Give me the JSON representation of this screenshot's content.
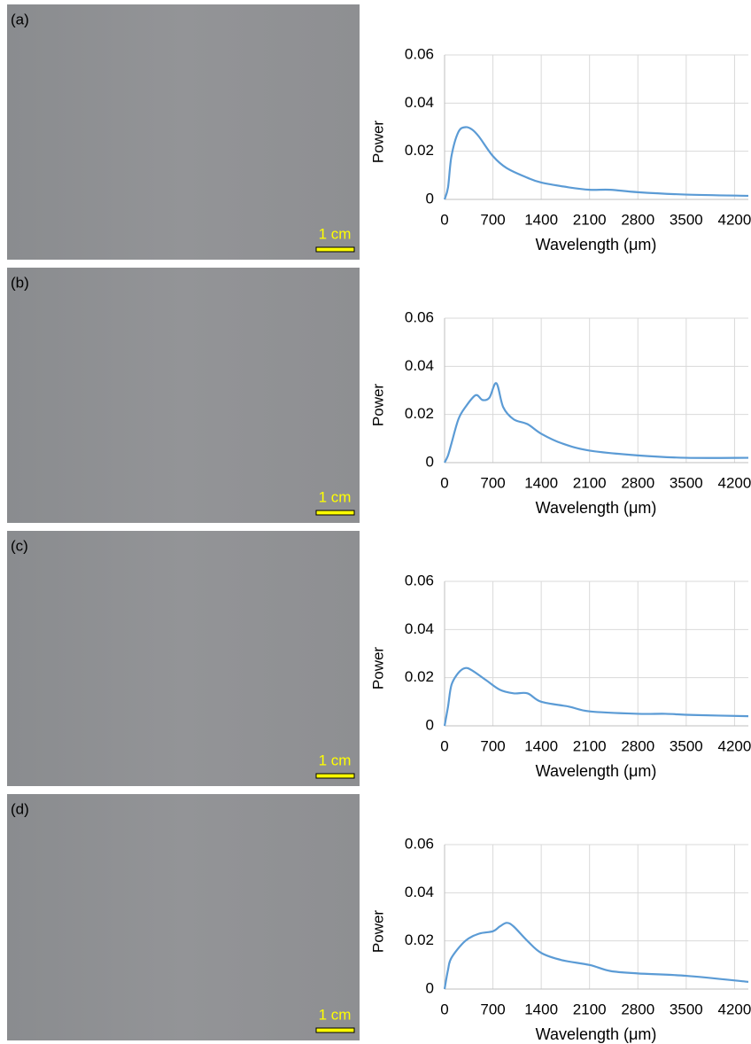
{
  "chart_data": [
    {
      "type": "line",
      "panel_label": "(a)",
      "scale_bar": "1 cm",
      "ylabel": "Power",
      "xlabel": "Wavelength (μm)",
      "x": [
        0,
        50,
        100,
        200,
        300,
        400,
        500,
        700,
        900,
        1200,
        1400,
        1800,
        2100,
        2400,
        2800,
        3500,
        4400
      ],
      "series": [
        {
          "color": "#5b9bd5",
          "values": [
            0,
            0.005,
            0.018,
            0.028,
            0.03,
            0.029,
            0.026,
            0.018,
            0.013,
            0.009,
            0.007,
            0.005,
            0.004,
            0.004,
            0.003,
            0.002,
            0.0015
          ]
        }
      ],
      "xlim": [
        0,
        4400
      ],
      "xticks": [
        0,
        700,
        1400,
        2100,
        2800,
        3500,
        4200
      ],
      "ylim": [
        0,
        0.06
      ],
      "yticks": [
        0,
        0.02,
        0.04,
        0.06
      ],
      "grid": true
    },
    {
      "type": "line",
      "panel_label": "(b)",
      "scale_bar": "1 cm",
      "ylabel": "Power",
      "xlabel": "Wavelength (μm)",
      "x": [
        0,
        50,
        100,
        200,
        300,
        450,
        550,
        650,
        750,
        850,
        1000,
        1200,
        1400,
        1700,
        2100,
        2800,
        3500,
        4400
      ],
      "series": [
        {
          "color": "#5b9bd5",
          "values": [
            0,
            0.003,
            0.008,
            0.018,
            0.023,
            0.028,
            0.026,
            0.027,
            0.033,
            0.023,
            0.018,
            0.016,
            0.012,
            0.008,
            0.005,
            0.003,
            0.002,
            0.002
          ]
        }
      ],
      "xlim": [
        0,
        4400
      ],
      "xticks": [
        0,
        700,
        1400,
        2100,
        2800,
        3500,
        4200
      ],
      "ylim": [
        0,
        0.06
      ],
      "yticks": [
        0,
        0.02,
        0.04,
        0.06
      ],
      "grid": true
    },
    {
      "type": "line",
      "panel_label": "(c)",
      "scale_bar": "1 cm",
      "ylabel": "Power",
      "xlabel": "Wavelength (μm)",
      "x": [
        0,
        50,
        100,
        200,
        300,
        400,
        600,
        800,
        1000,
        1200,
        1400,
        1800,
        2100,
        2800,
        3200,
        3600,
        4400
      ],
      "series": [
        {
          "color": "#5b9bd5",
          "values": [
            0,
            0.008,
            0.017,
            0.022,
            0.024,
            0.023,
            0.019,
            0.015,
            0.0135,
            0.0135,
            0.01,
            0.008,
            0.006,
            0.005,
            0.005,
            0.0045,
            0.004
          ]
        }
      ],
      "xlim": [
        0,
        4400
      ],
      "xticks": [
        0,
        700,
        1400,
        2100,
        2800,
        3500,
        4200
      ],
      "ylim": [
        0,
        0.06
      ],
      "yticks": [
        0,
        0.02,
        0.04,
        0.06
      ],
      "grid": true
    },
    {
      "type": "line",
      "panel_label": "(d)",
      "scale_bar": "1 cm",
      "ylabel": "Power",
      "xlabel": "Wavelength (μm)",
      "x": [
        0,
        50,
        100,
        300,
        500,
        700,
        800,
        900,
        1000,
        1200,
        1400,
        1700,
        2100,
        2400,
        2800,
        3500,
        4400
      ],
      "series": [
        {
          "color": "#5b9bd5",
          "values": [
            0,
            0.008,
            0.013,
            0.02,
            0.023,
            0.024,
            0.026,
            0.0275,
            0.026,
            0.02,
            0.015,
            0.012,
            0.01,
            0.0075,
            0.0065,
            0.0055,
            0.003
          ]
        }
      ],
      "xlim": [
        0,
        4400
      ],
      "xticks": [
        0,
        700,
        1400,
        2100,
        2800,
        3500,
        4200
      ],
      "ylim": [
        0,
        0.06
      ],
      "yticks": [
        0,
        0.02,
        0.04,
        0.06
      ],
      "grid": true
    }
  ]
}
